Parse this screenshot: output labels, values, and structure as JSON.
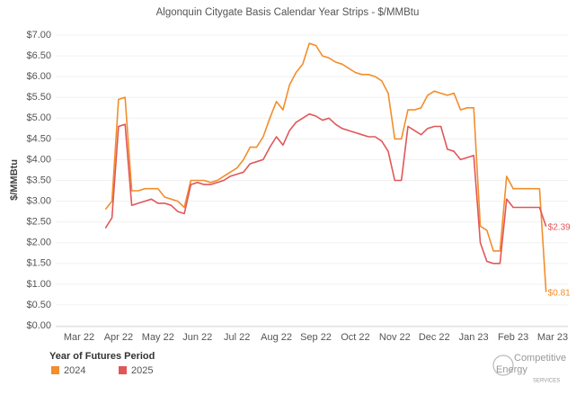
{
  "chart_data": {
    "type": "line",
    "title": "Algonquin Citygate Basis   Calendar Year Strips - $/MMBtu",
    "y_label": "$/MMBtu",
    "legend_title": "Year of Futures Period",
    "categories": [
      "Mar 22",
      null,
      null,
      null,
      null,
      null,
      "Apr 22",
      null,
      null,
      null,
      null,
      null,
      "May 22",
      null,
      null,
      null,
      null,
      null,
      "Jun 22",
      null,
      null,
      null,
      null,
      null,
      "Jul 22",
      null,
      null,
      null,
      null,
      null,
      "Aug 22",
      null,
      null,
      null,
      null,
      null,
      "Sep 22",
      null,
      null,
      null,
      null,
      null,
      "Oct 22",
      null,
      null,
      null,
      null,
      null,
      "Nov 22",
      null,
      null,
      null,
      null,
      null,
      "Dec 22",
      null,
      null,
      null,
      null,
      null,
      "Jan 23",
      null,
      null,
      null,
      null,
      null,
      "Feb 23",
      null,
      null,
      null,
      null,
      null,
      "Mar 23"
    ],
    "series": [
      {
        "name": "2024",
        "color": "#f28e2b",
        "values": [
          null,
          null,
          null,
          null,
          2.8,
          3.0,
          5.45,
          5.5,
          3.25,
          3.25,
          3.3,
          3.3,
          3.3,
          3.1,
          3.05,
          3.0,
          2.85,
          3.5,
          3.5,
          3.5,
          3.45,
          3.5,
          3.6,
          3.7,
          3.8,
          4.0,
          4.3,
          4.3,
          4.55,
          5.0,
          5.4,
          5.2,
          5.8,
          6.1,
          6.3,
          6.8,
          6.75,
          6.5,
          6.45,
          6.35,
          6.3,
          6.2,
          6.1,
          6.05,
          6.05,
          6.0,
          5.9,
          5.6,
          4.5,
          4.5,
          5.2,
          5.2,
          5.25,
          5.55,
          5.65,
          5.6,
          5.55,
          5.6,
          5.2,
          5.25,
          5.25,
          2.4,
          2.3,
          1.8,
          1.8,
          3.6,
          3.3,
          3.3,
          3.3,
          3.3,
          3.3,
          0.81,
          null
        ],
        "value_labels": [
          null,
          null,
          null,
          null,
          null,
          null,
          null,
          null,
          null,
          null,
          null,
          null,
          null,
          null,
          null,
          null,
          null,
          null,
          null,
          null,
          null,
          null,
          null,
          null,
          null,
          null,
          null,
          null,
          null,
          null,
          null,
          null,
          null,
          null,
          null,
          null,
          null,
          null,
          null,
          null,
          null,
          null,
          null,
          null,
          null,
          null,
          null,
          null,
          null,
          null,
          null,
          null,
          null,
          null,
          null,
          null,
          null,
          null,
          null,
          null,
          null,
          null,
          null,
          null,
          null,
          null,
          null,
          null,
          null,
          null,
          null,
          "$0.81",
          null
        ]
      },
      {
        "name": "2025",
        "color": "#e15759",
        "values": [
          null,
          null,
          null,
          null,
          2.35,
          2.6,
          4.8,
          4.85,
          2.9,
          2.95,
          3.0,
          3.05,
          2.95,
          2.95,
          2.9,
          2.75,
          2.7,
          3.4,
          3.45,
          3.4,
          3.4,
          3.45,
          3.5,
          3.6,
          3.65,
          3.7,
          3.9,
          3.95,
          4.0,
          4.3,
          4.55,
          4.35,
          4.7,
          4.9,
          5.0,
          5.1,
          5.05,
          4.95,
          5.0,
          4.85,
          4.75,
          4.7,
          4.65,
          4.6,
          4.55,
          4.55,
          4.45,
          4.2,
          3.5,
          3.5,
          4.8,
          4.7,
          4.6,
          4.75,
          4.8,
          4.8,
          4.25,
          4.2,
          4.0,
          4.05,
          4.1,
          2.0,
          1.55,
          1.5,
          1.5,
          3.05,
          2.85,
          2.85,
          2.85,
          2.85,
          2.85,
          2.39,
          null
        ],
        "value_labels": [
          null,
          null,
          null,
          null,
          null,
          null,
          null,
          null,
          null,
          null,
          null,
          null,
          null,
          null,
          null,
          null,
          null,
          null,
          null,
          null,
          null,
          null,
          null,
          null,
          null,
          null,
          null,
          null,
          null,
          null,
          null,
          null,
          null,
          null,
          null,
          null,
          null,
          null,
          null,
          null,
          null,
          null,
          null,
          null,
          null,
          null,
          null,
          null,
          null,
          null,
          null,
          null,
          null,
          null,
          null,
          null,
          null,
          null,
          null,
          null,
          null,
          null,
          null,
          null,
          null,
          null,
          null,
          null,
          null,
          null,
          null,
          "$2.39",
          null
        ]
      }
    ],
    "ylim": [
      0,
      7
    ],
    "yticks": [
      {
        "value": 0,
        "label": "$0.00"
      },
      {
        "value": 0.5,
        "label": "$0.50"
      },
      {
        "value": 1,
        "label": "$1.00"
      },
      {
        "value": 1.5,
        "label": "$1.50"
      },
      {
        "value": 2,
        "label": "$2.00"
      },
      {
        "value": 2.5,
        "label": "$2.50"
      },
      {
        "value": 3,
        "label": "$3.00"
      },
      {
        "value": 3.5,
        "label": "$3.50"
      },
      {
        "value": 4,
        "label": "$4.00"
      },
      {
        "value": 4.5,
        "label": "$4.50"
      },
      {
        "value": 5,
        "label": "$5.00"
      },
      {
        "value": 5.5,
        "label": "$5.50"
      },
      {
        "value": 6,
        "label": "$6.00"
      },
      {
        "value": 6.5,
        "label": "$6.50"
      },
      {
        "value": 7,
        "label": "$7.00"
      }
    ],
    "grid": true
  },
  "logo": [
    "Competitive",
    "Energy",
    "SERVICES"
  ]
}
